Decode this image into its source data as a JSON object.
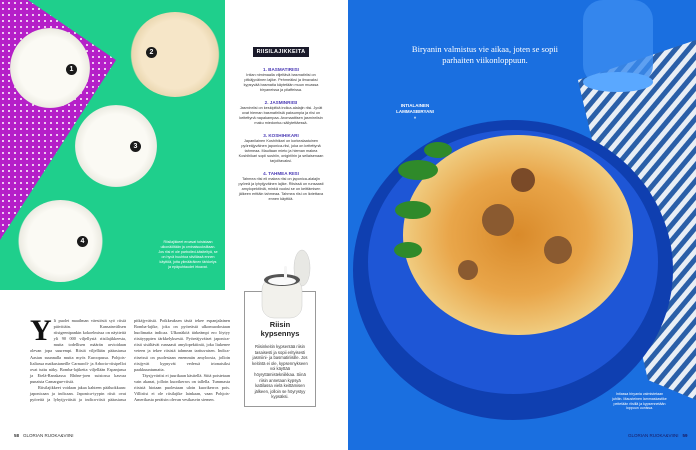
{
  "left_page": {
    "rice_numbers": [
      "1",
      "2",
      "3",
      "4"
    ],
    "photo_caption": "Riisilajikkeet eroavat toisistaan ulkonäöltään ja ominaisuuksiltaan. Jos riisi ei ole parboiled-käsiteltyä, se on hyvä huuhtoa siivilässä ennen käyttöä, jotta ylimääräinen tärkkelys ja epäpuhtaudet irtoavat.",
    "sidebar": {
      "title": "RIISILAJIKKEITA",
      "items": [
        {
          "heading": "1. BASMATIRIISI",
          "text": "Intian nimimaalla viljeltävä basmatiriisi on pitkäjyväinen lajike. Pehmeäksi ja ilmavaksi kypsyvää basmatia käytetään muun muassa biryaneissa ja pilaffeissa."
        },
        {
          "heading": "2. JASMINRIISI",
          "text": "Jasminriisi on keskipitkä indica-alalajin riisi. Jyvät ovat hieman basmatiriisiä paksumpia ja riisi on keitettynä napakampaa. Aromaattisen jasminriisin maku miedontuu säilytettäessä."
        },
        {
          "heading": "3. KOSHIHIKARI",
          "text": "Japanilainen Koshihikari on korkealaatuinen pyöreäjyväinen japonica-riisi, joka on keitettynä tahmeaa. Maultaan mieto ja hieman makea Koshihikari sopii sushiin, onigiriihin ja sellaisenaan tarjoiltavaksi."
        },
        {
          "heading": "4. TAHMEA RIISI",
          "text": "Tahmea riisi eli makea riisi on japonica-alalajin pyöreä ja lyhytjyväinen lajike. Riisissä on runsaasti amylopektiiniä, minkä vuoksi se on keittämisen jälkeen erittäin tahmeaa. Tahmea riisi on liotettava ennen käyttöä."
        }
      ]
    },
    "box": {
      "title": "Riisin kypsennys",
      "text": "Riisinkeitin kypsentää riisin tasaisesti ja sopii erityisesti jasmiini- ja basmatiriisille. Jos keitintä ei ole, kypsennykseen voi käyttää höyryttämistekniikkaa. Siinä riisin annetaan kypsyä kattilassa vielä keittämisen jälkeen, jolloin se höyrystyy kypsäksi."
    },
    "body": {
      "drop_cap": "Y",
      "paragraphs": [
        "li puolet maailman väestöstä syö riisiä päivittäin. Kansainvälisen riisigeenipankin kokoelmissa on näytteitä yli 90 000 viljellystä riisilajikkeesta, mutta todellisen määrän arvioidaan olevan jopa suurempi. Riisiä viljellään pääasiassa Aasian suunnalla mutta myös Euroopassa. Pohjois-Italiassa matkustaneille Carnaroli- ja Arborio-riisipellot ovat tuttu näky. Bomba-lajiketta viljellään Espanjassa ja Etelä-Ranskassa Rhône-joen suistossa kasvaa punaista Camargue-riisiä.",
        "Riisilajikkeet voidaan jakaa kahteen pääluokkaan: japonicaan ja indicaan. Japonica-tyypin riisit ovat pyöreitä ja lyhytjyväisiä ja indica-riisit pääasiassa pitkäjyväisiä. Poikkeuksen tästä tekee espanjalainen Bomba-lajike, joka on pyöreästä ulkomuodostaan huolimatta indicaa. Ulkonäköä tärkeämpi ero löytyy riisityyppien tärkkelyksestä. Pyöreäjyväiset japonica-riisit sisältävät runsaasti amylopektiiniä, joka liukenee veteen ja tekee riisistä tahmean tarttuvaisen. Indica-riiseissä on puolestaan enemmän amyloosia, jolloin riisijyvät kypsyvät vedessä irtonaisiksi paakkuuntumatta.",
        "Täysjyväriisi ei juurikaan käsitellä. Siitä poistetaan vain akanat, jolloin kuorikerros on tallella. Tummasta riisistä hiotaan puolestaan uloin kuorikerros pois. Villiriisi ei ole riisilajike lainkaan, vaan Pohjois-Amerikasta peräisin olevan vesikasvin siemen."
      ]
    },
    "footer": {
      "page_number": "58",
      "magazine": "GLORIAN RUOKA&VIINI"
    }
  },
  "right_page": {
    "headline": "Biryanin valmistus vie aikaa, joten se sopii parhaiten viikonloppuun.",
    "dish_label": "INTIALAINEN LAMMASBIRYANI",
    "dish_marker": "»",
    "caption": "Intiassa biryania valmistetaan juhliin. Mausteinen lammaskastike peitetään riisillä ja kypsennetään loppuun uunissa.",
    "footer": {
      "magazine": "GLORIAN RUOKA&VIINI",
      "page_number": "59"
    }
  },
  "colors": {
    "green": "#1fcf8c",
    "magenta": "#b51fc8",
    "blue": "#1a6fe0",
    "sidebar_heading": "#4b3bb5"
  }
}
